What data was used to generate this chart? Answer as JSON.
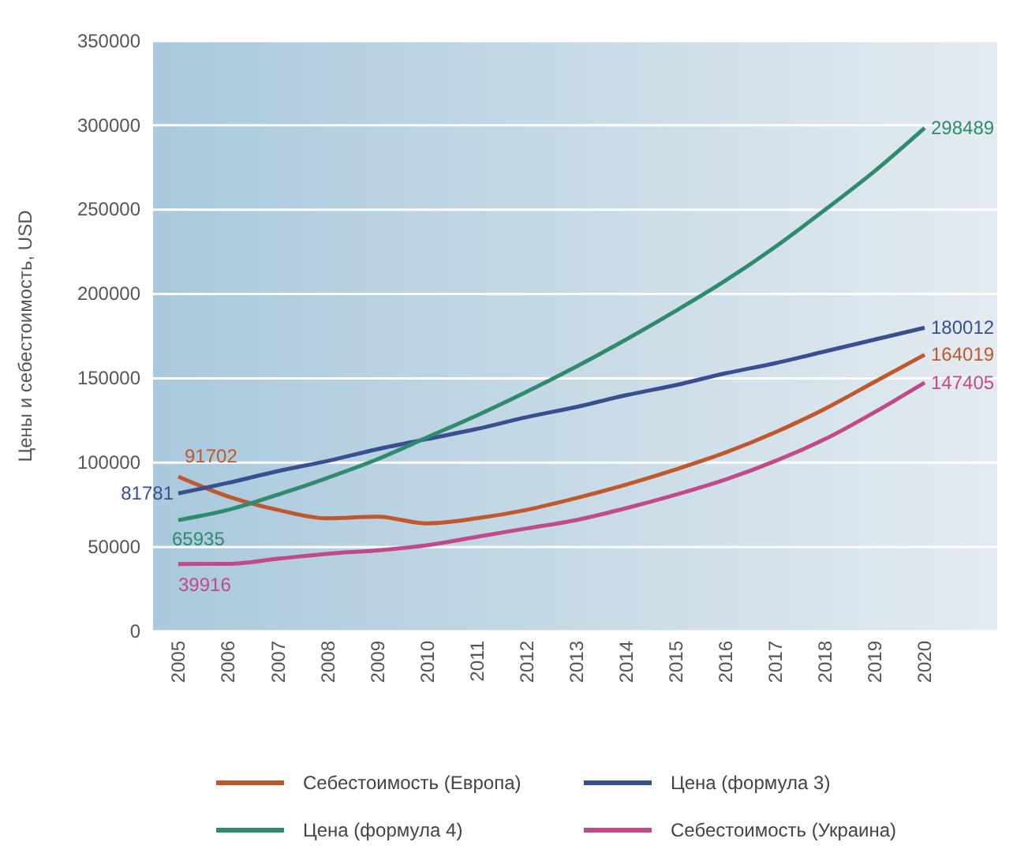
{
  "chart_data": {
    "type": "line",
    "ylabel": "Цены и себестоимость, USD",
    "categories": [
      "2005",
      "2006",
      "2007",
      "2008",
      "2009",
      "2010",
      "2011",
      "2012",
      "2013",
      "2014",
      "2015",
      "2016",
      "2017",
      "2018",
      "2019",
      "2020"
    ],
    "series": [
      {
        "name": "Себестоимость (Европа)",
        "color": "#c0582e",
        "values": [
          91702,
          80000,
          72000,
          67000,
          68000,
          64000,
          67000,
          72000,
          79000,
          87000,
          96000,
          106000,
          118000,
          132000,
          148000,
          164019
        ],
        "value_labels": [
          "91702",
          null,
          null,
          null,
          null,
          null,
          null,
          null,
          null,
          null,
          null,
          null,
          null,
          null,
          null,
          "164019"
        ]
      },
      {
        "name": "Цена (формула 3)",
        "color": "#3a4f8f",
        "values": [
          81781,
          88000,
          95000,
          101000,
          108000,
          114000,
          120000,
          127000,
          133000,
          140000,
          146000,
          153000,
          159000,
          166000,
          173000,
          180012
        ],
        "value_labels": [
          "81781",
          null,
          null,
          null,
          null,
          null,
          null,
          null,
          null,
          null,
          null,
          null,
          null,
          null,
          null,
          "180012"
        ]
      },
      {
        "name": "Цена (формула 4)",
        "color": "#2e8b6e",
        "values": [
          65935,
          72000,
          81000,
          91000,
          102000,
          115000,
          128000,
          142000,
          157000,
          173000,
          190000,
          208000,
          228000,
          250000,
          273000,
          298489
        ],
        "value_labels": [
          "65935",
          null,
          null,
          null,
          null,
          null,
          null,
          null,
          null,
          null,
          null,
          null,
          null,
          null,
          null,
          "298489"
        ]
      },
      {
        "name": "Себестоимость (Украина)",
        "color": "#c04a8a",
        "values": [
          39916,
          40000,
          43000,
          46000,
          48000,
          51000,
          56000,
          61000,
          66000,
          73000,
          81000,
          90000,
          101000,
          114000,
          130000,
          147405
        ],
        "value_labels": [
          "39916",
          null,
          null,
          null,
          null,
          null,
          null,
          null,
          null,
          null,
          null,
          null,
          null,
          null,
          null,
          "147405"
        ]
      }
    ],
    "ylim": [
      0,
      350000
    ],
    "yticks": [
      0,
      50000,
      100000,
      150000,
      200000,
      250000,
      300000,
      350000
    ],
    "grid": "y",
    "legend": "bottom",
    "marker": "none",
    "line_style": "solid"
  }
}
